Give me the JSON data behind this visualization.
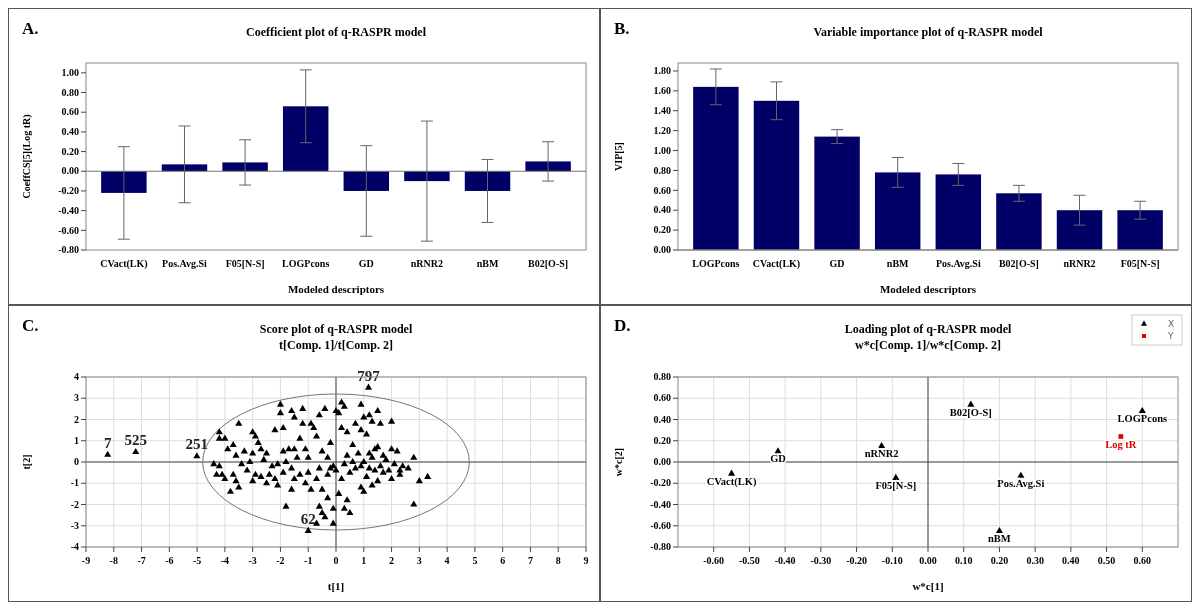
{
  "chart_data": [
    {
      "type": "bar",
      "title": "Coefficient plot of q-RASPR model",
      "xlabel": "Modeled descriptors",
      "ylabel": "CoeffCS[5](Log tR)",
      "annotations": [
        "A."
      ],
      "categories": [
        "CVact(LK)",
        "Pos.Avg.Si",
        "F05[N-S]",
        "LOGPcons",
        "GD",
        "nRNR2",
        "nBM",
        "B02[O-S]"
      ],
      "values": [
        -0.22,
        0.07,
        0.09,
        0.66,
        -0.2,
        -0.1,
        -0.2,
        0.1
      ],
      "errors": [
        0.47,
        0.39,
        0.23,
        0.37,
        0.46,
        0.61,
        0.32,
        0.2
      ],
      "color": "#000066",
      "ylim": [
        -0.8,
        1.1
      ],
      "yticks": [
        {
          "value": -0.8,
          "label": "-0.80"
        },
        {
          "value": -0.6,
          "label": "-0.60"
        },
        {
          "value": -0.4,
          "label": "-0.40"
        },
        {
          "value": -0.2,
          "label": "-0.20"
        },
        {
          "value": 0,
          "label": "0.00"
        },
        {
          "value": 0.2,
          "label": "0.20"
        },
        {
          "value": 0.4,
          "label": "0.40"
        },
        {
          "value": 0.6,
          "label": "0.60"
        },
        {
          "value": 0.8,
          "label": "0.80"
        },
        {
          "value": 1,
          "label": "1.00"
        }
      ]
    },
    {
      "type": "bar",
      "title": "Variable importance plot of q-RASPR model",
      "xlabel": "Modeled descriptors",
      "ylabel": "VIP[5]",
      "annotations": [
        "B."
      ],
      "categories": [
        "LOGPcons",
        "CVact(LK)",
        "GD",
        "nBM",
        "Pos.Avg.Si",
        "B02[O-S]",
        "nRNR2",
        "F05[N-S]"
      ],
      "values": [
        1.64,
        1.5,
        1.14,
        0.78,
        0.76,
        0.57,
        0.4,
        0.4
      ],
      "errors": [
        0.18,
        0.19,
        0.07,
        0.15,
        0.11,
        0.08,
        0.15,
        0.09
      ],
      "color": "#000066",
      "ylim": [
        0,
        1.88
      ],
      "yticks": [
        {
          "value": 0,
          "label": "0.00"
        },
        {
          "value": 0.2,
          "label": "0.20"
        },
        {
          "value": 0.4,
          "label": "0.40"
        },
        {
          "value": 0.6,
          "label": "0.60"
        },
        {
          "value": 0.8,
          "label": "0.80"
        },
        {
          "value": 1,
          "label": "1.00"
        },
        {
          "value": 1.2,
          "label": "1.20"
        },
        {
          "value": 1.4,
          "label": "1.40"
        },
        {
          "value": 1.6,
          "label": "1.60"
        },
        {
          "value": 1.8,
          "label": "1.80"
        }
      ]
    },
    {
      "type": "scatter",
      "title": "Score plot of q-RASPR model",
      "subtitle": "t[Comp. 1]/t[Comp. 2]",
      "xlabel": "t[1]",
      "ylabel": "t[2]",
      "grid": true,
      "annotations": [
        "C.",
        {
          "text": "7",
          "x": -8.22,
          "y": 0.34
        },
        {
          "text": "525",
          "x": -7.21,
          "y": 0.47
        },
        {
          "text": "251",
          "x": -5.01,
          "y": 0.27
        },
        {
          "text": "797",
          "x": 1.17,
          "y": 3.5
        },
        {
          "text": "62",
          "x": -1.0,
          "y": -3.24
        }
      ],
      "series": [
        {
          "type": "scatter",
          "marker": "triangle",
          "color": "#000000",
          "x": [
            -8.22,
            -7.21,
            -5.01,
            1.17,
            -1.0,
            -4.2,
            -4.2,
            -4.0,
            -3.5,
            -3.7,
            -3.9,
            -3.3,
            -3.6,
            -4.4,
            -4.2,
            -4.1,
            -4.3,
            -4.0,
            -3.7,
            -3.6,
            -3.8,
            -3.5,
            -3.4,
            -3.1,
            -3.0,
            -2.9,
            -2.8,
            -2.7,
            -3.0,
            -2.6,
            -2.9,
            -3.0,
            -2.7,
            -2.5,
            -2.4,
            -2.3,
            -2.1,
            -2.2,
            -2.1,
            -1.9,
            -1.9,
            -2.2,
            -2.0,
            -2.0,
            -1.9,
            -1.7,
            -1.5,
            -1.6,
            -1.5,
            -1.2,
            -1.2,
            -1.3,
            -1.4,
            -1.6,
            -1.5,
            -1.6,
            -1.8,
            -1.3,
            -1.1,
            -1.0,
            -1.0,
            -1.1,
            -0.9,
            -0.9,
            -0.8,
            -0.7,
            -0.6,
            -0.5,
            -0.6,
            -0.7,
            -0.5,
            -0.6,
            -0.5,
            -0.4,
            -0.7,
            -0.3,
            -0.3,
            -0.4,
            -0.2,
            -0.1,
            -0.1,
            -0.1,
            0.0,
            0.0,
            0.2,
            0.3,
            0.1,
            0.2,
            0.4,
            0.2,
            0.1,
            0.3,
            0.5,
            0.4,
            0.5,
            0.4,
            0.6,
            0.7,
            0.9,
            0.9,
            1.0,
            1.2,
            1.3,
            1.1,
            0.8,
            0.9,
            0.9,
            1.0,
            1.1,
            1.2,
            1.3,
            1.4,
            1.5,
            1.6,
            2.0,
            1.5,
            1.6,
            1.7,
            1.5,
            1.3,
            1.8,
            1.9,
            2.0,
            2.0,
            2.2,
            2.1,
            2.3,
            2.4,
            2.3,
            2.6,
            2.8,
            3.3,
            3.0,
            2.8,
            0.6,
            0.7,
            1.0,
            1.4,
            1.2,
            -0.2,
            -0.3,
            0.3,
            1.7,
            -1.8,
            -2.5,
            -3.2
          ],
          "values": [
            0.34,
            0.47,
            0.27,
            3.5,
            -3.24,
            1.4,
            1.1,
            1.1,
            1.8,
            0.8,
            0.6,
            0.5,
            0.3,
            -0.1,
            -0.2,
            -0.6,
            -0.6,
            -0.8,
            -0.6,
            -0.9,
            -1.4,
            -1.2,
            -0.1,
            0.0,
            1.4,
            1.2,
            0.9,
            0.6,
            0.4,
            0.1,
            -0.6,
            -0.9,
            -0.7,
            -1.0,
            -0.6,
            -0.2,
            -0.1,
            -0.8,
            -1.1,
            -0.5,
            0.5,
            1.5,
            2.7,
            2.3,
            1.6,
            0.6,
            0.6,
            2.4,
            2.1,
            2.5,
            1.8,
            1.1,
            0.2,
            -0.3,
            -0.8,
            -1.3,
            -2.1,
            -0.6,
            0.6,
            0.2,
            -0.5,
            -1.0,
            -1.3,
            1.8,
            1.6,
            1.2,
            2.2,
            0.5,
            -0.3,
            -0.8,
            -1.3,
            -2.1,
            -2.4,
            -2.6,
            -2.9,
            -1.7,
            -0.6,
            2.5,
            0.9,
            -0.2,
            -2.9,
            -2.2,
            -0.4,
            2.4,
            2.8,
            2.6,
            2.3,
            1.6,
            1.4,
            -0.8,
            -1.5,
            -2.2,
            -2.4,
            -1.8,
            -0.5,
            0.3,
            0.8,
            1.8,
            2.7,
            1.5,
            2.1,
            2.2,
            1.9,
            1.3,
            0.4,
            -0.2,
            -1.2,
            -1.4,
            -0.7,
            -0.3,
            0.2,
            0.6,
            2.4,
            1.8,
            1.9,
            0.7,
            -0.2,
            -0.5,
            -0.9,
            -1.1,
            0.1,
            -0.4,
            -0.8,
            0.6,
            0.5,
            -0.1,
            -0.4,
            -0.2,
            -0.6,
            -0.3,
            0.2,
            -0.7,
            -0.9,
            -2.0,
            0.0,
            -0.3,
            0.0,
            -0.4,
            0.4,
            -0.3,
            0.2,
            -0.1,
            0.3,
            0.0,
            0.4,
            -0.4
          ]
        }
      ],
      "xlim": [
        -9,
        9
      ],
      "xticks": [
        -9,
        -8,
        -7,
        -6,
        -5,
        -4,
        -3,
        -2,
        -1,
        0,
        1,
        2,
        3,
        4,
        5,
        6,
        7,
        8,
        9
      ],
      "ylim": [
        -4,
        4
      ],
      "yticks": [
        -4,
        -3,
        -2,
        -1,
        0,
        1,
        2,
        3,
        4
      ]
    },
    {
      "type": "scatter",
      "title": "Loading plot of q-RASPR model",
      "subtitle": "w*c[Comp. 1]/w*c[Comp. 2]",
      "xlabel": "w*c[1]",
      "ylabel": "w*c[2]",
      "grid": true,
      "legend": "top right",
      "annotations": [
        "D.",
        {
          "text": "CVact(LK)",
          "x": -0.55,
          "y": -0.11
        },
        {
          "text": "GD",
          "x": -0.42,
          "y": 0.1
        },
        {
          "text": "nRNR2",
          "x": -0.13,
          "y": 0.15
        },
        {
          "text": "F05[N-S]",
          "x": -0.09,
          "y": -0.15
        },
        {
          "text": "B02[O-S]",
          "x": 0.12,
          "y": 0.54
        },
        {
          "text": "Pos.Avg.Si",
          "x": 0.26,
          "y": -0.13
        },
        {
          "text": "nBM",
          "x": 0.2,
          "y": -0.65
        },
        {
          "text": "LOGPcons",
          "x": 0.6,
          "y": 0.48
        },
        {
          "text": "Log tR",
          "x": 0.54,
          "y": 0.24
        }
      ],
      "series": [
        {
          "name": "X",
          "type": "scatter",
          "marker": "triangle",
          "color": "#000000",
          "x": [
            -0.55,
            -0.42,
            -0.13,
            -0.09,
            0.12,
            0.26,
            0.2,
            0.6
          ],
          "values": [
            -0.11,
            0.1,
            0.15,
            -0.15,
            0.54,
            -0.13,
            -0.65,
            0.48
          ]
        },
        {
          "name": "Y",
          "type": "scatter",
          "marker": "square",
          "color": "#e00000",
          "x": [
            0.54
          ],
          "values": [
            0.24
          ]
        }
      ],
      "xlim": [
        -0.7,
        0.7
      ],
      "xticks": [
        {
          "value": -0.6,
          "label": "-0.60"
        },
        {
          "value": -0.5,
          "label": "-0.50"
        },
        {
          "value": -0.4,
          "label": "-0.40"
        },
        {
          "value": -0.3,
          "label": "-0.30"
        },
        {
          "value": -0.2,
          "label": "-0.20"
        },
        {
          "value": -0.1,
          "label": "-0.10"
        },
        {
          "value": 0,
          "label": "0.00"
        },
        {
          "value": 0.1,
          "label": "0.10"
        },
        {
          "value": 0.2,
          "label": "0.20"
        },
        {
          "value": 0.3,
          "label": "0.30"
        },
        {
          "value": 0.4,
          "label": "0.40"
        },
        {
          "value": 0.5,
          "label": "0.50"
        },
        {
          "value": 0.6,
          "label": "0.60"
        }
      ],
      "ylim": [
        -0.8,
        0.8
      ],
      "yticks": [
        {
          "value": -0.8,
          "label": "-0.80"
        },
        {
          "value": -0.6,
          "label": "-0.60"
        },
        {
          "value": -0.4,
          "label": "-0.40"
        },
        {
          "value": -0.2,
          "label": "-0.20"
        },
        {
          "value": 0,
          "label": "0.00"
        },
        {
          "value": 0.2,
          "label": "0.20"
        },
        {
          "value": 0.4,
          "label": "0.40"
        },
        {
          "value": 0.6,
          "label": "0.60"
        },
        {
          "value": 0.8,
          "label": "0.80"
        }
      ]
    }
  ]
}
